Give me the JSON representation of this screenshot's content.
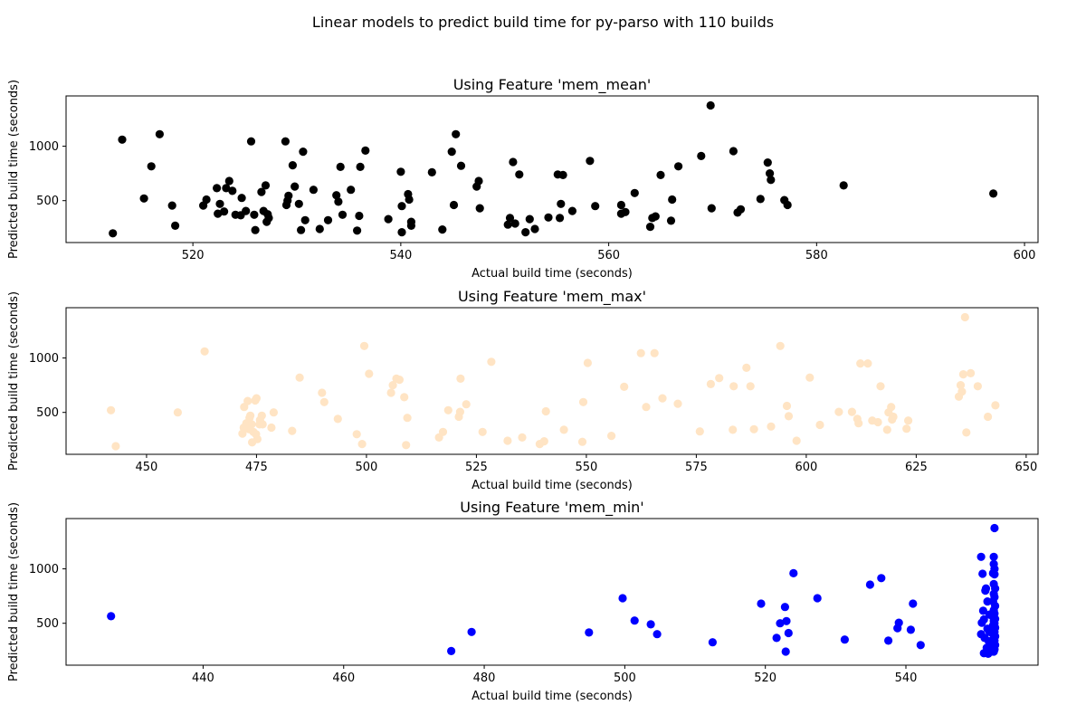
{
  "figure": {
    "suptitle": "Linear models to predict build time for py-parso with 110 builds"
  },
  "chart_data": [
    {
      "type": "scatter",
      "title": "Using Feature 'mem_mean'",
      "xlabel": "Actual build time (seconds)",
      "ylabel": "Predicted build time (seconds)",
      "color": "#000000",
      "xlim": [
        507.8,
        601.3
      ],
      "ylim": [
        115,
        1462
      ],
      "xticks": [
        520,
        540,
        560,
        580,
        600
      ],
      "yticks": [
        500,
        1000
      ],
      "points": [
        [
          512.3,
          200
        ],
        [
          513.2,
          1060
        ],
        [
          515.3,
          520
        ],
        [
          516.0,
          815
        ],
        [
          516.8,
          1110
        ],
        [
          518.0,
          455
        ],
        [
          518.3,
          270
        ],
        [
          521.0,
          455
        ],
        [
          521.3,
          510
        ],
        [
          522.3,
          615
        ],
        [
          522.4,
          380
        ],
        [
          522.6,
          470
        ],
        [
          523.0,
          400
        ],
        [
          523.2,
          615
        ],
        [
          523.5,
          680
        ],
        [
          523.8,
          590
        ],
        [
          524.1,
          370
        ],
        [
          524.6,
          365
        ],
        [
          524.7,
          525
        ],
        [
          525.1,
          405
        ],
        [
          525.6,
          1045
        ],
        [
          525.9,
          370
        ],
        [
          526.0,
          230
        ],
        [
          526.6,
          580
        ],
        [
          526.8,
          405
        ],
        [
          527.0,
          640
        ],
        [
          527.1,
          305
        ],
        [
          527.2,
          375
        ],
        [
          527.3,
          340
        ],
        [
          528.9,
          1045
        ],
        [
          529.0,
          460
        ],
        [
          529.1,
          500
        ],
        [
          529.2,
          545
        ],
        [
          529.6,
          825
        ],
        [
          529.8,
          630
        ],
        [
          530.2,
          470
        ],
        [
          530.4,
          230
        ],
        [
          530.6,
          950
        ],
        [
          530.8,
          320
        ],
        [
          531.6,
          600
        ],
        [
          532.2,
          240
        ],
        [
          533.0,
          320
        ],
        [
          533.8,
          550
        ],
        [
          534.0,
          490
        ],
        [
          534.2,
          810
        ],
        [
          534.4,
          370
        ],
        [
          535.2,
          600
        ],
        [
          535.8,
          225
        ],
        [
          536.0,
          360
        ],
        [
          536.1,
          810
        ],
        [
          536.6,
          960
        ],
        [
          538.8,
          330
        ],
        [
          540.0,
          765
        ],
        [
          540.1,
          450
        ],
        [
          540.1,
          210
        ],
        [
          540.7,
          560
        ],
        [
          540.8,
          510
        ],
        [
          541.0,
          270
        ],
        [
          541.0,
          305
        ],
        [
          543.0,
          760
        ],
        [
          544.0,
          235
        ],
        [
          544.9,
          950
        ],
        [
          545.1,
          460
        ],
        [
          545.3,
          1110
        ],
        [
          545.8,
          820
        ],
        [
          547.3,
          630
        ],
        [
          547.5,
          680
        ],
        [
          547.6,
          430
        ],
        [
          550.3,
          280
        ],
        [
          550.5,
          340
        ],
        [
          550.8,
          855
        ],
        [
          551.0,
          290
        ],
        [
          551.4,
          740
        ],
        [
          552.0,
          210
        ],
        [
          552.4,
          330
        ],
        [
          552.9,
          240
        ],
        [
          554.2,
          345
        ],
        [
          555.1,
          740
        ],
        [
          555.3,
          340
        ],
        [
          555.4,
          470
        ],
        [
          555.6,
          735
        ],
        [
          556.5,
          405
        ],
        [
          558.2,
          865
        ],
        [
          558.7,
          450
        ],
        [
          561.2,
          380
        ],
        [
          561.2,
          460
        ],
        [
          561.6,
          395
        ],
        [
          562.5,
          570
        ],
        [
          564.0,
          260
        ],
        [
          564.2,
          340
        ],
        [
          564.5,
          355
        ],
        [
          565.0,
          735
        ],
        [
          566.1,
          510
        ],
        [
          566.0,
          315
        ],
        [
          566.7,
          815
        ],
        [
          568.9,
          910
        ],
        [
          569.8,
          1375
        ],
        [
          569.9,
          430
        ],
        [
          572.0,
          955
        ],
        [
          572.4,
          390
        ],
        [
          572.7,
          420
        ],
        [
          574.6,
          515
        ],
        [
          575.3,
          850
        ],
        [
          575.5,
          750
        ],
        [
          575.6,
          690
        ],
        [
          576.9,
          505
        ],
        [
          577.2,
          460
        ],
        [
          582.6,
          640
        ],
        [
          597.0,
          565
        ]
      ]
    },
    {
      "type": "scatter",
      "title": "Using Feature 'mem_max'",
      "xlabel": "Actual build time (seconds)",
      "ylabel": "Predicted build time (seconds)",
      "color": "#ffe4c4",
      "xlim": [
        431.7,
        652.7
      ],
      "ylim": [
        115,
        1462
      ],
      "xticks": [
        450,
        475,
        500,
        525,
        550,
        575,
        600,
        625,
        650
      ],
      "yticks": [
        500,
        1000
      ],
      "points": [
        [
          441.9,
          520
        ],
        [
          443.0,
          190
        ],
        [
          457.1,
          500
        ],
        [
          463.2,
          1060
        ],
        [
          471.8,
          305
        ],
        [
          472.1,
          360
        ],
        [
          472.2,
          550
        ],
        [
          472.7,
          400
        ],
        [
          473.0,
          605
        ],
        [
          473.3,
          345
        ],
        [
          473.4,
          450
        ],
        [
          473.6,
          470
        ],
        [
          473.9,
          390
        ],
        [
          474.0,
          225
        ],
        [
          474.3,
          320
        ],
        [
          474.7,
          610
        ],
        [
          474.9,
          300
        ],
        [
          475.0,
          630
        ],
        [
          475.2,
          255
        ],
        [
          475.7,
          390
        ],
        [
          475.8,
          430
        ],
        [
          476.2,
          470
        ],
        [
          476.4,
          390
        ],
        [
          478.4,
          360
        ],
        [
          478.9,
          500
        ],
        [
          483.1,
          330
        ],
        [
          484.8,
          820
        ],
        [
          489.9,
          680
        ],
        [
          490.4,
          595
        ],
        [
          493.5,
          440
        ],
        [
          497.8,
          300
        ],
        [
          499.0,
          210
        ],
        [
          499.5,
          1110
        ],
        [
          500.6,
          855
        ],
        [
          505.6,
          680
        ],
        [
          506.0,
          750
        ],
        [
          506.8,
          810
        ],
        [
          507.5,
          800
        ],
        [
          508.6,
          640
        ],
        [
          509.0,
          200
        ],
        [
          509.3,
          450
        ],
        [
          516.5,
          270
        ],
        [
          517.4,
          320
        ],
        [
          518.6,
          520
        ],
        [
          521.0,
          460
        ],
        [
          521.3,
          505
        ],
        [
          521.4,
          810
        ],
        [
          522.7,
          575
        ],
        [
          526.4,
          320
        ],
        [
          528.4,
          965
        ],
        [
          532.1,
          240
        ],
        [
          535.4,
          270
        ],
        [
          539.4,
          210
        ],
        [
          540.4,
          235
        ],
        [
          540.8,
          510
        ],
        [
          544.9,
          340
        ],
        [
          549.1,
          230
        ],
        [
          549.3,
          595
        ],
        [
          550.3,
          955
        ],
        [
          555.7,
          285
        ],
        [
          558.6,
          735
        ],
        [
          562.4,
          1045
        ],
        [
          563.6,
          550
        ],
        [
          565.5,
          1045
        ],
        [
          567.3,
          630
        ],
        [
          570.8,
          580
        ],
        [
          575.8,
          325
        ],
        [
          578.3,
          760
        ],
        [
          580.2,
          815
        ],
        [
          583.3,
          340
        ],
        [
          583.5,
          740
        ],
        [
          586.4,
          910
        ],
        [
          588.1,
          345
        ],
        [
          587.3,
          740
        ],
        [
          592.0,
          370
        ],
        [
          594.1,
          1110
        ],
        [
          595.6,
          560
        ],
        [
          596.0,
          465
        ],
        [
          597.8,
          240
        ],
        [
          600.8,
          820
        ],
        [
          603.1,
          385
        ],
        [
          607.4,
          505
        ],
        [
          610.4,
          505
        ],
        [
          611.6,
          440
        ],
        [
          611.9,
          400
        ],
        [
          612.3,
          950
        ],
        [
          614.0,
          950
        ],
        [
          615.0,
          425
        ],
        [
          616.3,
          410
        ],
        [
          616.9,
          740
        ],
        [
          618.4,
          340
        ],
        [
          618.7,
          500
        ],
        [
          619.3,
          550
        ],
        [
          619.5,
          435
        ],
        [
          619.8,
          460
        ],
        [
          622.8,
          350
        ],
        [
          623.2,
          425
        ],
        [
          634.7,
          645
        ],
        [
          635.1,
          750
        ],
        [
          635.4,
          690
        ],
        [
          635.7,
          850
        ],
        [
          636.1,
          1375
        ],
        [
          636.4,
          315
        ],
        [
          637.4,
          860
        ],
        [
          639.0,
          740
        ],
        [
          641.3,
          460
        ],
        [
          643.0,
          565
        ]
      ]
    },
    {
      "type": "scatter",
      "title": "Using Feature 'mem_min'",
      "xlabel": "Actual build time (seconds)",
      "ylabel": "Predicted build time (seconds)",
      "color": "#0000ff",
      "xlim": [
        420.5,
        558.8
      ],
      "ylim": [
        115,
        1462
      ],
      "xticks": [
        440,
        460,
        480,
        500,
        520,
        540
      ],
      "yticks": [
        500,
        1000
      ],
      "points": [
        [
          426.9,
          565
        ],
        [
          475.3,
          245
        ],
        [
          478.2,
          420
        ],
        [
          494.9,
          415
        ],
        [
          499.7,
          730
        ],
        [
          501.4,
          525
        ],
        [
          503.7,
          490
        ],
        [
          504.6,
          400
        ],
        [
          512.5,
          325
        ],
        [
          519.4,
          680
        ],
        [
          521.6,
          365
        ],
        [
          522.1,
          500
        ],
        [
          522.8,
          650
        ],
        [
          523.0,
          520
        ],
        [
          522.9,
          240
        ],
        [
          523.3,
          410
        ],
        [
          524.0,
          960
        ],
        [
          527.4,
          730
        ],
        [
          531.3,
          350
        ],
        [
          534.9,
          855
        ],
        [
          536.5,
          915
        ],
        [
          537.5,
          340
        ],
        [
          538.8,
          455
        ],
        [
          539.0,
          505
        ],
        [
          540.7,
          440
        ],
        [
          541.0,
          680
        ],
        [
          542.1,
          300
        ],
        [
          550.7,
          1110
        ],
        [
          550.9,
          955
        ],
        [
          551.0,
          615
        ],
        [
          550.7,
          400
        ],
        [
          551.1,
          225
        ],
        [
          551.3,
          800
        ],
        [
          551.4,
          820
        ],
        [
          550.8,
          505
        ],
        [
          551.1,
          535
        ],
        [
          551.2,
          365
        ],
        [
          551.6,
          450
        ],
        [
          551.5,
          275
        ],
        [
          551.7,
          220
        ],
        [
          551.9,
          580
        ],
        [
          551.6,
          700
        ],
        [
          552.0,
          300
        ],
        [
          551.8,
          335
        ],
        [
          551.9,
          420
        ],
        [
          552.1,
          240
        ],
        [
          552.6,
          1375
        ],
        [
          552.5,
          1110
        ],
        [
          552.5,
          1045
        ],
        [
          552.6,
          1000
        ],
        [
          552.4,
          960
        ],
        [
          552.6,
          950
        ],
        [
          552.5,
          860
        ],
        [
          552.7,
          820
        ],
        [
          552.5,
          770
        ],
        [
          552.6,
          740
        ],
        [
          552.4,
          700
        ],
        [
          552.7,
          660
        ],
        [
          552.5,
          620
        ],
        [
          552.6,
          590
        ],
        [
          552.4,
          560
        ],
        [
          552.7,
          540
        ],
        [
          552.5,
          520
        ],
        [
          552.6,
          500
        ],
        [
          552.4,
          480
        ],
        [
          552.7,
          460
        ],
        [
          552.5,
          440
        ],
        [
          552.6,
          420
        ],
        [
          552.4,
          400
        ],
        [
          552.7,
          380
        ],
        [
          552.5,
          360
        ],
        [
          552.6,
          340
        ],
        [
          552.4,
          320
        ],
        [
          552.7,
          300
        ],
        [
          552.5,
          280
        ],
        [
          552.6,
          260
        ],
        [
          552.5,
          240
        ]
      ]
    }
  ]
}
